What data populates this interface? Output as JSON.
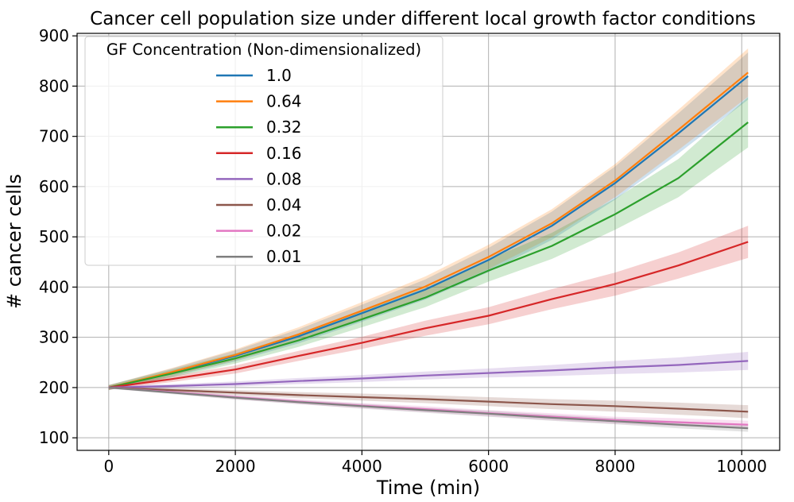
{
  "chart_data": {
    "type": "line",
    "title": "Cancer cell population size under different local growth factor conditions",
    "xlabel": "Time (min)",
    "ylabel": "# cancer cells",
    "xlim": [
      -500,
      10600
    ],
    "ylim": [
      75,
      905
    ],
    "xticks": [
      0,
      2000,
      4000,
      6000,
      8000,
      10000
    ],
    "yticks": [
      100,
      200,
      300,
      400,
      500,
      600,
      700,
      800,
      900
    ],
    "grid": true,
    "legend": {
      "title": "GF Concentration (Non-dimensionalized)",
      "placement": "upper-left"
    },
    "x": [
      0,
      1000,
      2000,
      3000,
      4000,
      5000,
      6000,
      7000,
      8000,
      9000,
      10100
    ],
    "series": [
      {
        "name": "1.0",
        "color": "#1f77b4",
        "values": [
          200,
          230,
          263,
          302,
          348,
          395,
          454,
          522,
          607,
          706,
          820
        ],
        "band": [
          5,
          8,
          11,
          14,
          17,
          20,
          24,
          28,
          33,
          40,
          47
        ]
      },
      {
        "name": "0.64",
        "color": "#ff7f0e",
        "values": [
          200,
          231,
          265,
          306,
          353,
          401,
          460,
          527,
          612,
          713,
          827
        ],
        "band": [
          5,
          8,
          11,
          14,
          17,
          20,
          24,
          28,
          33,
          40,
          48
        ]
      },
      {
        "name": "0.32",
        "color": "#2ca02c",
        "values": [
          200,
          228,
          258,
          294,
          336,
          379,
          433,
          482,
          545,
          617,
          728
        ],
        "band": [
          5,
          8,
          10,
          13,
          16,
          19,
          22,
          26,
          31,
          38,
          50
        ]
      },
      {
        "name": "0.16",
        "color": "#d62728",
        "values": [
          200,
          217,
          236,
          263,
          289,
          318,
          343,
          376,
          406,
          443,
          490
        ],
        "band": [
          4,
          6,
          8,
          10,
          12,
          15,
          17,
          20,
          23,
          26,
          32
        ]
      },
      {
        "name": "0.08",
        "color": "#9467bd",
        "values": [
          200,
          203,
          207,
          213,
          218,
          224,
          229,
          234,
          240,
          245,
          253
        ],
        "band": [
          3,
          4,
          5,
          6,
          7,
          8,
          9,
          11,
          13,
          15,
          18
        ]
      },
      {
        "name": "0.04",
        "color": "#8c564b",
        "values": [
          200,
          195,
          190,
          185,
          181,
          177,
          172,
          167,
          163,
          158,
          152
        ],
        "band": [
          2,
          4,
          5,
          6,
          7,
          8,
          9,
          10,
          11,
          12,
          13
        ]
      },
      {
        "name": "0.02",
        "color": "#e377c2",
        "values": [
          200,
          191,
          181,
          172,
          164,
          157,
          149,
          142,
          135,
          131,
          126
        ],
        "band": [
          2,
          3,
          4,
          5,
          5,
          6,
          6,
          7,
          7,
          8,
          8
        ]
      },
      {
        "name": "0.01",
        "color": "#7f7f7f",
        "values": [
          200,
          190,
          180,
          171,
          163,
          155,
          148,
          140,
          133,
          126,
          119
        ],
        "band": [
          2,
          3,
          4,
          4,
          5,
          5,
          6,
          6,
          6,
          7,
          7
        ]
      }
    ]
  }
}
